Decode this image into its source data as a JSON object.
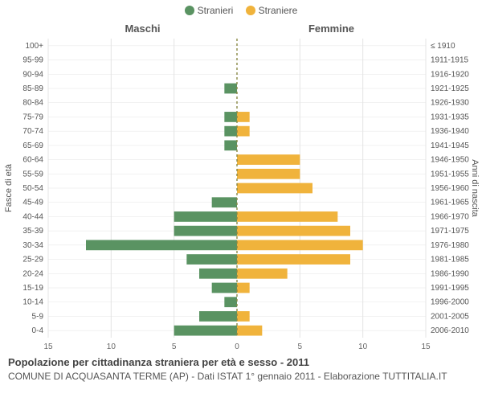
{
  "legend": {
    "male": {
      "label": "Stranieri",
      "color": "#5a9362"
    },
    "female": {
      "label": "Straniere",
      "color": "#f0b33c"
    }
  },
  "header_left": "Maschi",
  "header_right": "Femmine",
  "left_axis_title": "Fasce di età",
  "right_axis_title": "Anni di nascita",
  "caption_title": "Popolazione per cittadinanza straniera per età e sesso - 2011",
  "caption_sub": "COMUNE DI ACQUASANTA TERME (AP) - Dati ISTAT 1° gennaio 2011 - Elaborazione TUTTITALIA.IT",
  "chart": {
    "type": "pyramid-bar",
    "xlim": 15,
    "xticks": [
      15,
      10,
      5,
      0,
      5,
      10,
      15
    ],
    "background_color": "#ffffff",
    "grid_color": "#e4e4e4",
    "center_line_color": "#888844",
    "bar_colors": {
      "male": "#5a9362",
      "female": "#f0b33c"
    },
    "label_fontsize": 10,
    "rows": [
      {
        "age": "100+",
        "year": "≤ 1910",
        "m": 0,
        "f": 0
      },
      {
        "age": "95-99",
        "year": "1911-1915",
        "m": 0,
        "f": 0
      },
      {
        "age": "90-94",
        "year": "1916-1920",
        "m": 0,
        "f": 0
      },
      {
        "age": "85-89",
        "year": "1921-1925",
        "m": 1,
        "f": 0
      },
      {
        "age": "80-84",
        "year": "1926-1930",
        "m": 0,
        "f": 0
      },
      {
        "age": "75-79",
        "year": "1931-1935",
        "m": 1,
        "f": 1
      },
      {
        "age": "70-74",
        "year": "1936-1940",
        "m": 1,
        "f": 1
      },
      {
        "age": "65-69",
        "year": "1941-1945",
        "m": 1,
        "f": 0
      },
      {
        "age": "60-64",
        "year": "1946-1950",
        "m": 0,
        "f": 5
      },
      {
        "age": "55-59",
        "year": "1951-1955",
        "m": 0,
        "f": 5
      },
      {
        "age": "50-54",
        "year": "1956-1960",
        "m": 0,
        "f": 6
      },
      {
        "age": "45-49",
        "year": "1961-1965",
        "m": 2,
        "f": 0
      },
      {
        "age": "40-44",
        "year": "1966-1970",
        "m": 5,
        "f": 8
      },
      {
        "age": "35-39",
        "year": "1971-1975",
        "m": 5,
        "f": 9
      },
      {
        "age": "30-34",
        "year": "1976-1980",
        "m": 12,
        "f": 10
      },
      {
        "age": "25-29",
        "year": "1981-1985",
        "m": 4,
        "f": 9
      },
      {
        "age": "20-24",
        "year": "1986-1990",
        "m": 3,
        "f": 4
      },
      {
        "age": "15-19",
        "year": "1991-1995",
        "m": 2,
        "f": 1
      },
      {
        "age": "10-14",
        "year": "1996-2000",
        "m": 1,
        "f": 0
      },
      {
        "age": "5-9",
        "year": "2001-2005",
        "m": 3,
        "f": 1
      },
      {
        "age": "0-4",
        "year": "2006-2010",
        "m": 5,
        "f": 2
      }
    ]
  }
}
